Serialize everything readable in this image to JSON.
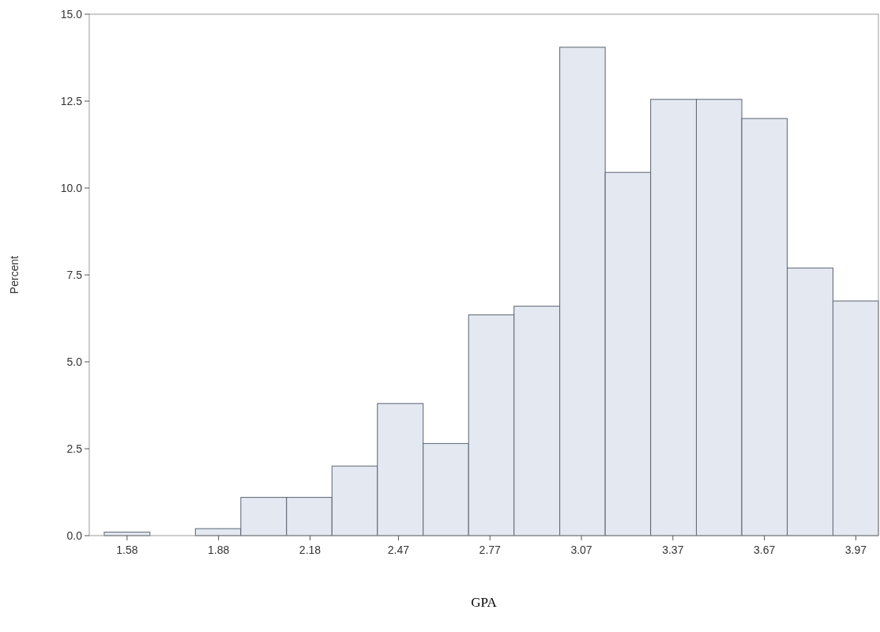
{
  "chart_data": {
    "type": "histogram",
    "xlabel": "GPA",
    "ylabel": "Percent",
    "bins": [
      1.505,
      1.655,
      1.804,
      1.953,
      2.103,
      2.252,
      2.401,
      2.551,
      2.7,
      2.849,
      2.999,
      3.148,
      3.297,
      3.447,
      3.596,
      3.745,
      3.895,
      4.044
    ],
    "values": [
      0.1,
      0,
      0.2,
      1.1,
      1.1,
      2.0,
      3.8,
      2.65,
      6.35,
      6.6,
      14.05,
      10.45,
      12.55,
      12.55,
      12.0,
      7.7,
      6.75
    ],
    "color": "#e3e8f1",
    "xlim": [
      1.456,
      4.044
    ],
    "xticks": [
      1.58,
      1.88,
      2.18,
      2.47,
      2.77,
      3.07,
      3.37,
      3.67,
      3.97
    ],
    "ylim": [
      0,
      15
    ],
    "yticks": [
      {
        "value": 0,
        "label": "0.0"
      },
      {
        "value": 2.5,
        "label": "2.5"
      },
      {
        "value": 5,
        "label": "5.0"
      },
      {
        "value": 7.5,
        "label": "7.5"
      },
      {
        "value": 10,
        "label": "10.0"
      },
      {
        "value": 12.5,
        "label": "12.5"
      },
      {
        "value": 15,
        "label": "15.0"
      }
    ]
  }
}
